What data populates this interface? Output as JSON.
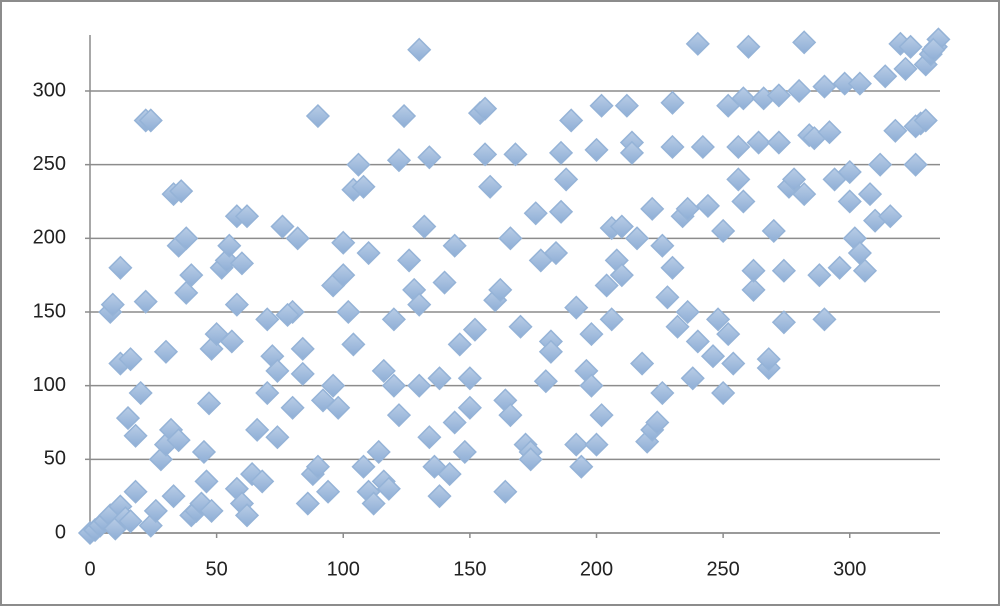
{
  "chart_data": {
    "type": "scatter",
    "color": "#95b3d7",
    "grid": true,
    "xlim": [
      0,
      338
    ],
    "ylim": [
      0,
      338
    ],
    "xticks": [
      0,
      50,
      100,
      150,
      200,
      250,
      300
    ],
    "yticks": [
      0,
      50,
      100,
      150,
      200,
      250,
      300
    ],
    "x": [
      0,
      2,
      4,
      6,
      8,
      10,
      12,
      14,
      16,
      18,
      15,
      18,
      12,
      12,
      8,
      9,
      16,
      20,
      22,
      24,
      22,
      24,
      26,
      28,
      30,
      32,
      30,
      33,
      35,
      33,
      36,
      35,
      38,
      38,
      40,
      40,
      42,
      44,
      45,
      46,
      47,
      48,
      48,
      50,
      52,
      54,
      55,
      56,
      58,
      60,
      58,
      62,
      58,
      60,
      62,
      64,
      66,
      68,
      70,
      70,
      72,
      74,
      74,
      76,
      80,
      78,
      82,
      80,
      84,
      84,
      86,
      88,
      90,
      92,
      90,
      94,
      96,
      96,
      98,
      100,
      100,
      102,
      104,
      104,
      106,
      108,
      110,
      108,
      110,
      112,
      114,
      116,
      118,
      116,
      120,
      120,
      122,
      124,
      122,
      126,
      128,
      130,
      130,
      132,
      134,
      130,
      134,
      136,
      138,
      138,
      140,
      142,
      144,
      146,
      144,
      148,
      150,
      150,
      152,
      154,
      156,
      156,
      158,
      160,
      162,
      164,
      164,
      166,
      166,
      168,
      170,
      172,
      174,
      174,
      176,
      178,
      180,
      182,
      182,
      184,
      186,
      186,
      188,
      190,
      192,
      192,
      194,
      196,
      198,
      200,
      198,
      200,
      202,
      202,
      204,
      206,
      206,
      208,
      210,
      210,
      212,
      214,
      214,
      216,
      218,
      220,
      222,
      222,
      224,
      226,
      226,
      228,
      230,
      230,
      230,
      232,
      234,
      236,
      236,
      238,
      240,
      240,
      242,
      244,
      246,
      248,
      250,
      250,
      252,
      252,
      254,
      256,
      256,
      258,
      258,
      260,
      262,
      262,
      264,
      266,
      268,
      268,
      270,
      272,
      272,
      274,
      274,
      276,
      278,
      280,
      282,
      282,
      284,
      286,
      288,
      290,
      290,
      292,
      294,
      296,
      298,
      300,
      300,
      302,
      304,
      304,
      306,
      308,
      310,
      312,
      314,
      316,
      318,
      320,
      322,
      324,
      326,
      328,
      330,
      332,
      334,
      326,
      330,
      335,
      333
    ],
    "values": [
      0,
      2,
      5,
      8,
      12,
      3,
      18,
      10,
      8,
      28,
      78,
      66,
      115,
      180,
      150,
      155,
      118,
      95,
      280,
      280,
      157,
      5,
      15,
      50,
      60,
      70,
      123,
      25,
      63,
      230,
      232,
      195,
      200,
      163,
      175,
      12,
      15,
      20,
      55,
      35,
      88,
      15,
      125,
      135,
      180,
      185,
      195,
      130,
      155,
      183,
      215,
      215,
      30,
      20,
      12,
      40,
      70,
      35,
      145,
      95,
      120,
      110,
      65,
      208,
      150,
      148,
      200,
      85,
      108,
      125,
      20,
      40,
      45,
      90,
      283,
      28,
      168,
      100,
      85,
      175,
      197,
      150,
      128,
      233,
      250,
      235,
      190,
      45,
      28,
      20,
      55,
      35,
      30,
      110,
      145,
      100,
      80,
      283,
      253,
      185,
      165,
      100,
      155,
      208,
      255,
      328,
      65,
      45,
      25,
      105,
      170,
      40,
      75,
      128,
      195,
      55,
      105,
      85,
      138,
      285,
      288,
      257,
      235,
      158,
      165,
      90,
      28,
      80,
      200,
      257,
      140,
      60,
      55,
      50,
      217,
      185,
      103,
      130,
      123,
      190,
      218,
      258,
      240,
      280,
      60,
      153,
      45,
      110,
      135,
      260,
      100,
      60,
      80,
      290,
      168,
      207,
      145,
      185,
      175,
      208,
      290,
      265,
      258,
      200,
      115,
      62,
      220,
      70,
      75,
      95,
      195,
      160,
      180,
      292,
      262,
      140,
      215,
      220,
      150,
      105,
      130,
      332,
      262,
      222,
      120,
      145,
      95,
      205,
      290,
      135,
      115,
      262,
      240,
      225,
      295,
      330,
      165,
      178,
      265,
      295,
      112,
      118,
      205,
      265,
      297,
      143,
      178,
      235,
      240,
      300,
      230,
      333,
      270,
      268,
      175,
      145,
      303,
      272,
      240,
      180,
      305,
      225,
      245,
      200,
      190,
      305,
      178,
      230,
      212,
      250,
      310,
      215,
      273,
      332,
      315,
      330,
      250,
      278,
      318,
      325,
      330,
      276,
      280,
      335,
      328
    ]
  }
}
